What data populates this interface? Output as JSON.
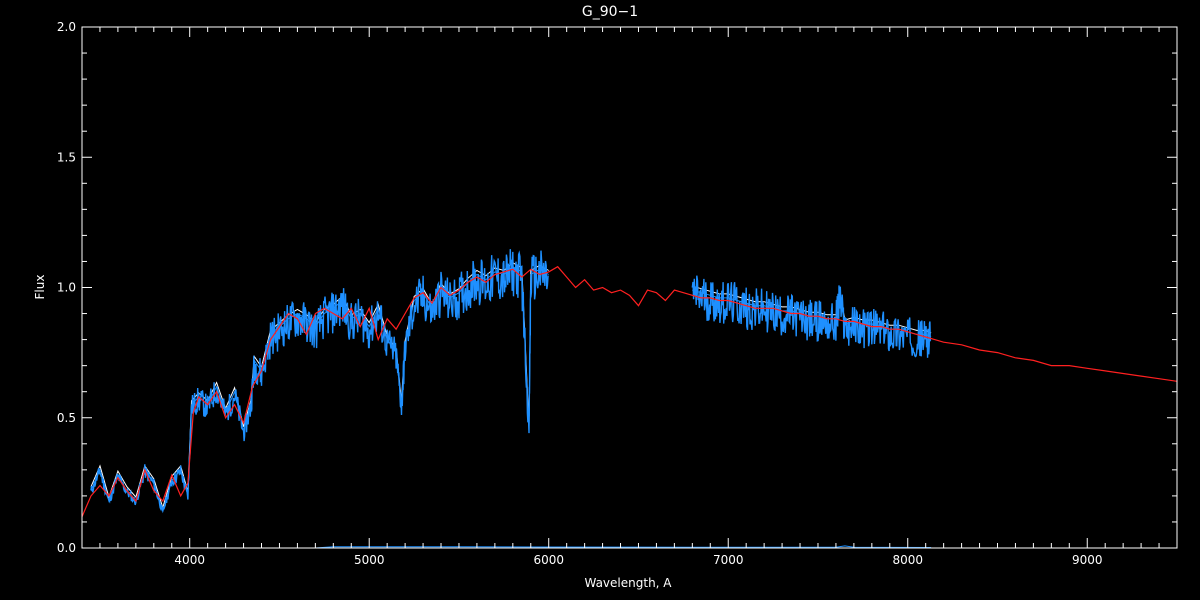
{
  "chart_data": {
    "type": "line",
    "title": "G_90−1",
    "xlabel": "Wavelength, A",
    "ylabel": "Flux",
    "xlim": [
      3400,
      9500
    ],
    "ylim": [
      0.0,
      2.0
    ],
    "x_ticks": [
      4000,
      5000,
      6000,
      7000,
      8000,
      9000
    ],
    "x_tick_labels": [
      "4000",
      "5000",
      "6000",
      "7000",
      "8000",
      "9000"
    ],
    "y_ticks": [
      0.0,
      0.5,
      1.0,
      1.5,
      2.0
    ],
    "y_tick_labels": [
      "0.0",
      "0.5",
      "1.0",
      "1.5",
      "2.0"
    ],
    "grid": false,
    "colors": {
      "background": "#000000",
      "axes": "#ffffff",
      "observed": "#1e90ff",
      "observed_upper": "#ffffff",
      "model": "#ff2020"
    },
    "series": [
      {
        "color": "#1e90ff",
        "x": [
          3450,
          3500,
          3550,
          3600,
          3650,
          3700,
          3750,
          3800,
          3850,
          3900,
          3950,
          3990,
          4010,
          4050,
          4100,
          4150,
          4200,
          4250,
          4300,
          4340,
          4360,
          4400,
          4450,
          4500,
          4550,
          4600,
          4650,
          4700,
          4750,
          4800,
          4850,
          4900,
          4950,
          5000,
          5050,
          5100,
          5150,
          5180,
          5200,
          5250,
          5300,
          5350,
          5400,
          5450,
          5500,
          5550,
          5600,
          5650,
          5700,
          5750,
          5800,
          5850,
          5890,
          5900,
          5950,
          6000
        ],
        "y": [
          0.22,
          0.3,
          0.18,
          0.28,
          0.22,
          0.18,
          0.3,
          0.25,
          0.14,
          0.26,
          0.3,
          0.2,
          0.55,
          0.58,
          0.55,
          0.62,
          0.52,
          0.6,
          0.45,
          0.55,
          0.72,
          0.68,
          0.82,
          0.85,
          0.88,
          0.9,
          0.88,
          0.85,
          0.9,
          0.92,
          0.95,
          0.88,
          0.9,
          0.85,
          0.92,
          0.8,
          0.75,
          0.55,
          0.78,
          0.95,
          0.98,
          0.92,
          1.0,
          0.96,
          0.98,
          1.02,
          1.05,
          1.03,
          1.06,
          1.05,
          1.08,
          1.06,
          0.45,
          1.05,
          1.07,
          1.05
        ]
      },
      {
        "color": "#1e90ff",
        "x": [
          6800,
          6850,
          6900,
          6950,
          7000,
          7050,
          7100,
          7150,
          7200,
          7250,
          7300,
          7350,
          7400,
          7450,
          7500,
          7550,
          7600,
          7620,
          7650,
          7700,
          7750,
          7800,
          7850,
          7900,
          7950,
          8000,
          8050,
          8100,
          8130
        ],
        "y": [
          0.99,
          0.98,
          0.97,
          0.96,
          0.96,
          0.95,
          0.94,
          0.93,
          0.93,
          0.92,
          0.91,
          0.91,
          0.9,
          0.89,
          0.89,
          0.88,
          0.88,
          0.97,
          0.86,
          0.87,
          0.86,
          0.86,
          0.85,
          0.84,
          0.84,
          0.83,
          0.82,
          0.82,
          0.81
        ]
      },
      {
        "color": "#ff2020",
        "x": [
          3400,
          3450,
          3500,
          3550,
          3600,
          3650,
          3700,
          3750,
          3800,
          3850,
          3900,
          3950,
          3990,
          4020,
          4050,
          4100,
          4150,
          4200,
          4250,
          4300,
          4350,
          4400,
          4450,
          4500,
          4550,
          4600,
          4650,
          4700,
          4750,
          4800,
          4850,
          4900,
          4950,
          5000,
          5050,
          5100,
          5150,
          5200,
          5250,
          5300,
          5350,
          5400,
          5450,
          5500,
          5550,
          5600,
          5650,
          5700,
          5750,
          5800,
          5850,
          5900,
          5950,
          6000,
          6050,
          6100,
          6150,
          6200,
          6250,
          6300,
          6350,
          6400,
          6450,
          6500,
          6550,
          6600,
          6650,
          6700,
          6750,
          6800,
          6850,
          6900,
          6950,
          7000,
          7050,
          7100,
          7150,
          7200,
          7250,
          7300,
          7350,
          7400,
          7450,
          7500,
          7550,
          7600,
          7650,
          7700,
          7750,
          7800,
          7850,
          7900,
          7950,
          8000,
          8050,
          8100,
          8150,
          8200,
          8300,
          8400,
          8500,
          8600,
          8700,
          8800,
          8900,
          9000,
          9100,
          9200,
          9300,
          9400,
          9500
        ],
        "y": [
          0.12,
          0.2,
          0.24,
          0.2,
          0.27,
          0.22,
          0.18,
          0.3,
          0.22,
          0.18,
          0.28,
          0.2,
          0.25,
          0.52,
          0.58,
          0.55,
          0.6,
          0.5,
          0.55,
          0.48,
          0.62,
          0.68,
          0.8,
          0.85,
          0.9,
          0.88,
          0.82,
          0.9,
          0.92,
          0.9,
          0.88,
          0.92,
          0.85,
          0.92,
          0.8,
          0.88,
          0.84,
          0.9,
          0.96,
          0.98,
          0.94,
          1.0,
          0.97,
          0.99,
          1.02,
          1.04,
          1.02,
          1.05,
          1.06,
          1.07,
          1.04,
          1.07,
          1.05,
          1.06,
          1.08,
          1.04,
          1.0,
          1.03,
          0.99,
          1.0,
          0.98,
          0.99,
          0.97,
          0.93,
          0.99,
          0.98,
          0.95,
          0.99,
          0.98,
          0.97,
          0.96,
          0.96,
          0.95,
          0.95,
          0.94,
          0.93,
          0.92,
          0.92,
          0.92,
          0.91,
          0.9,
          0.9,
          0.89,
          0.89,
          0.88,
          0.88,
          0.87,
          0.87,
          0.86,
          0.85,
          0.85,
          0.84,
          0.84,
          0.83,
          0.82,
          0.81,
          0.8,
          0.79,
          0.78,
          0.76,
          0.75,
          0.73,
          0.72,
          0.7,
          0.7,
          0.69,
          0.68,
          0.67,
          0.66,
          0.65,
          0.64
        ]
      },
      {
        "color": "#1e90ff",
        "x": [
          3450,
          4700,
          4800,
          5500,
          6000,
          6800,
          7600,
          7650,
          7700,
          8130
        ],
        "y": [
          0.0,
          0.0,
          0.005,
          0.005,
          0.004,
          0.003,
          0.003,
          0.008,
          0.003,
          0.002
        ]
      }
    ]
  }
}
